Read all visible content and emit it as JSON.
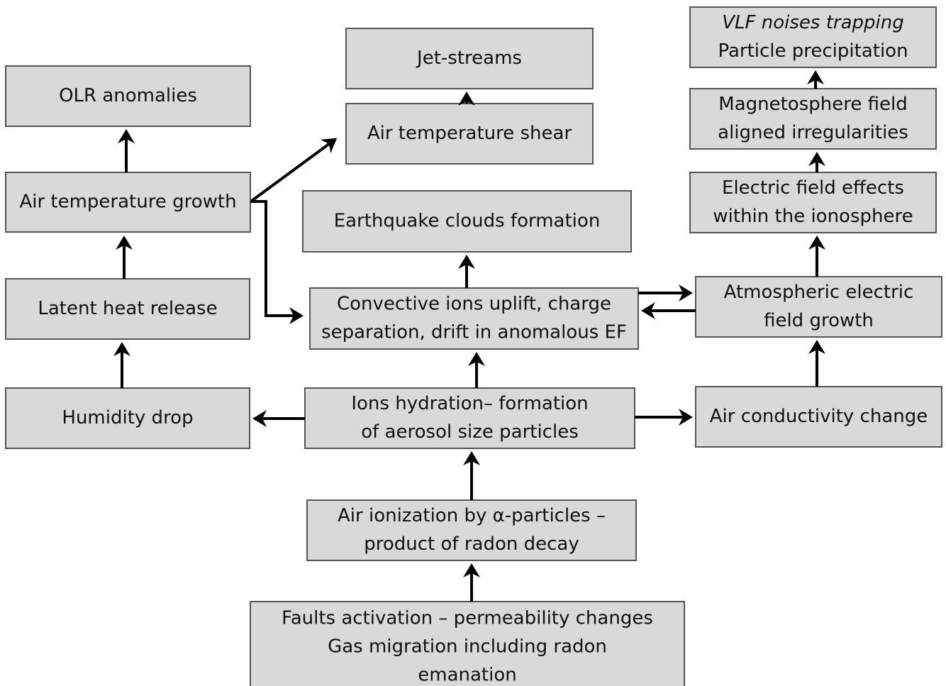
{
  "nodes": [
    {
      "label": [
        "OLR anomalies"
      ]
    },
    {
      "label": [
        "Air temperature growth"
      ]
    },
    {
      "label": [
        "Latent heat release"
      ]
    },
    {
      "label": [
        "Humidity drop"
      ]
    },
    {
      "label": [
        "Jet-streams"
      ]
    },
    {
      "label": [
        "Air temperature shear"
      ]
    },
    {
      "label": [
        "Earthquake clouds formation"
      ]
    },
    {
      "label": [
        "Convective ions uplift, charge",
        "separation, drift in anomalous EF"
      ]
    },
    {
      "label": [
        "Ions hydration– formation",
        "of aerosol size particles"
      ]
    },
    {
      "label": [
        "Air ionization by α-particles –",
        "product of radon decay"
      ]
    },
    {
      "label": [
        "Faults activation – permeability changes",
        "Gas migration including radon",
        "emanation"
      ]
    },
    {
      "label": [
        "VLF noises trapping",
        "Particle precipitation"
      ]
    },
    {
      "label": [
        "Magnetosphere field",
        "aligned irregularities"
      ]
    },
    {
      "label": [
        "Electric field effects",
        "within the ionosphere"
      ]
    },
    {
      "label": [
        "Atmospheric electric",
        "field growth"
      ]
    },
    {
      "label": [
        "Air conductivity change"
      ]
    }
  ]
}
